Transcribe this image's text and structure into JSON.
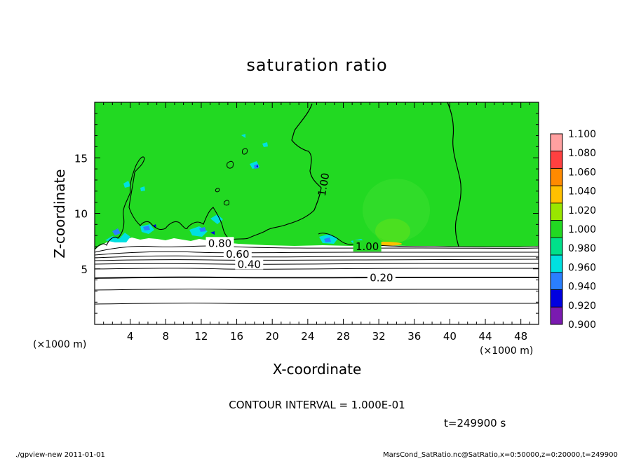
{
  "chart_data": {
    "type": "heatmap",
    "title": "saturation ratio",
    "xlabel": "X-coordinate",
    "ylabel": "Z-coordinate",
    "x_unit": "(×1000 m)",
    "y_unit": "(×1000 m)",
    "xlim": [
      0,
      50
    ],
    "ylim": [
      0,
      20
    ],
    "x_ticks": [
      4,
      8,
      12,
      16,
      20,
      24,
      28,
      32,
      36,
      40,
      44,
      48
    ],
    "y_ticks": [
      5,
      10,
      15
    ],
    "colorbar": {
      "levels": [
        "1.100",
        "1.080",
        "1.060",
        "1.040",
        "1.020",
        "1.000",
        "0.980",
        "0.960",
        "0.940",
        "0.920",
        "0.900"
      ],
      "colors": [
        "#ffa0a0",
        "#ff4040",
        "#ff8a00",
        "#ffc000",
        "#99e600",
        "#22d922",
        "#00e08a",
        "#00e0e0",
        "#2a7fff",
        "#0000e0",
        "#7a1ab0"
      ]
    },
    "contour_labels": [
      {
        "text": "1.00",
        "x": 25.8,
        "z": 12.6
      },
      {
        "text": "1.00",
        "x": 30.7,
        "z": 7.0
      },
      {
        "text": "0.80",
        "x": 14.1,
        "z": 7.3
      },
      {
        "text": "0.60",
        "x": 16.1,
        "z": 6.3
      },
      {
        "text": "0.40",
        "x": 17.4,
        "z": 5.4
      },
      {
        "text": "0.20",
        "x": 32.3,
        "z": 4.2
      }
    ],
    "contour_interval": "CONTOUR INTERVAL = 1.000E-01",
    "time": "t=249900 s",
    "footer_left": "./gpview-new  2011-01-01",
    "footer_right": "MarsCond_SatRatio.nc@SatRatio,x=0:50000,z=0:20000,t=249900"
  }
}
